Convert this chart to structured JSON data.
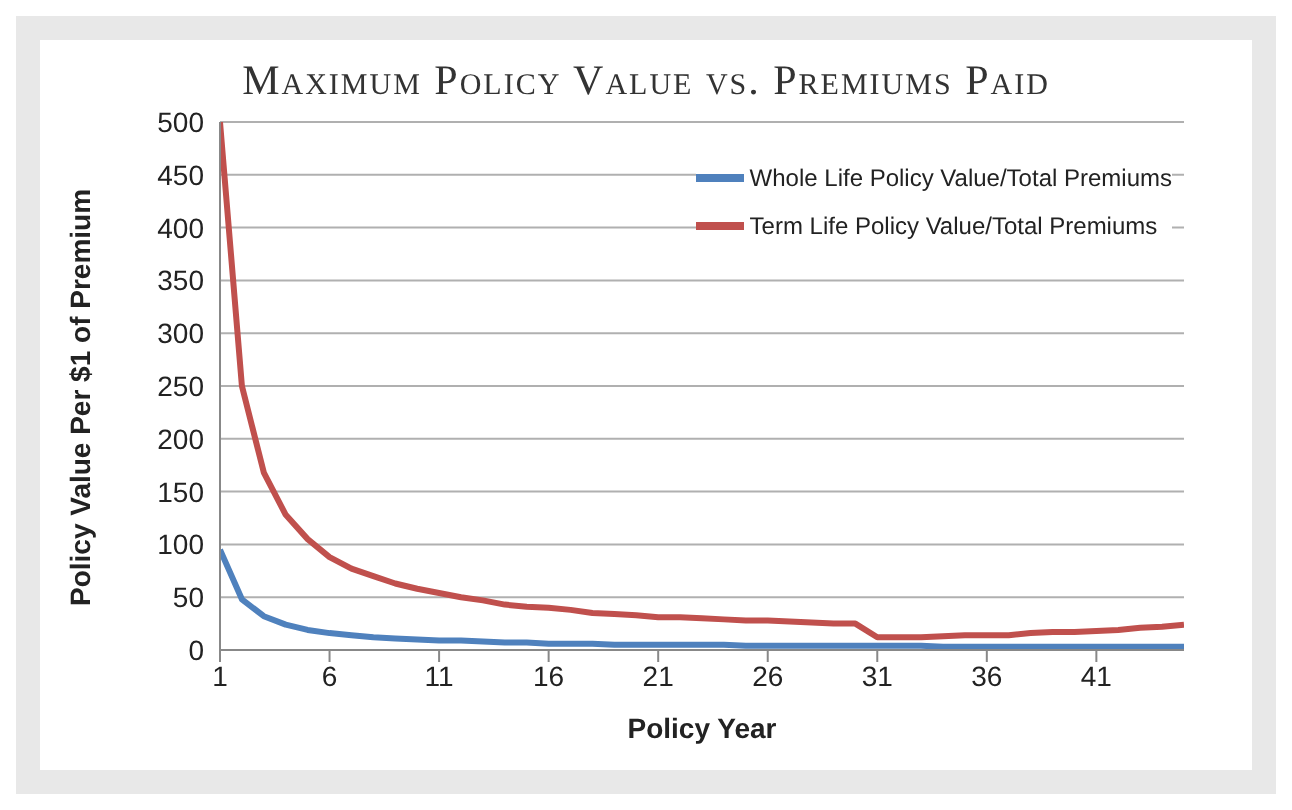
{
  "chart_data": {
    "type": "line",
    "title": "Maximum Policy Value vs. Premiums Paid",
    "xlabel": "Policy Year",
    "ylabel": "Policy Value Per $1 of Premium",
    "x": [
      1,
      2,
      3,
      4,
      5,
      6,
      7,
      8,
      9,
      10,
      11,
      12,
      13,
      14,
      15,
      16,
      17,
      18,
      19,
      20,
      21,
      22,
      23,
      24,
      25,
      26,
      27,
      28,
      29,
      30,
      31,
      32,
      33,
      34,
      35,
      36,
      37,
      38,
      39,
      40,
      41,
      42,
      43,
      44,
      45
    ],
    "series": [
      {
        "name": "Whole Life Policy Value/Total Premiums",
        "color": "#4f81bd",
        "values": [
          95,
          48,
          32,
          24,
          19,
          16,
          14,
          12,
          11,
          10,
          9,
          9,
          8,
          7,
          7,
          6,
          6,
          6,
          5,
          5,
          5,
          5,
          5,
          5,
          4,
          4,
          4,
          4,
          4,
          4,
          4,
          4,
          4,
          3,
          3,
          3,
          3,
          3,
          3,
          3,
          3,
          3,
          3,
          3,
          3
        ]
      },
      {
        "name": "Term Life Policy Value/Total Premiums",
        "color": "#c0504d",
        "values": [
          500,
          250,
          168,
          128,
          105,
          88,
          77,
          70,
          63,
          58,
          54,
          50,
          47,
          43,
          41,
          40,
          38,
          35,
          34,
          33,
          31,
          31,
          30,
          29,
          28,
          28,
          27,
          26,
          25,
          25,
          12,
          12,
          12,
          13,
          14,
          14,
          14,
          16,
          17,
          17,
          18,
          19,
          21,
          22,
          24
        ]
      }
    ],
    "xlim": [
      1,
      45
    ],
    "xticks": [
      1,
      6,
      11,
      16,
      21,
      26,
      31,
      36,
      41
    ],
    "ylim": [
      0,
      500
    ],
    "yticks": [
      0,
      50,
      100,
      150,
      200,
      250,
      300,
      350,
      400,
      450,
      500
    ],
    "grid": "y",
    "legend": "top right",
    "marker": "none",
    "line_style": "solid"
  }
}
